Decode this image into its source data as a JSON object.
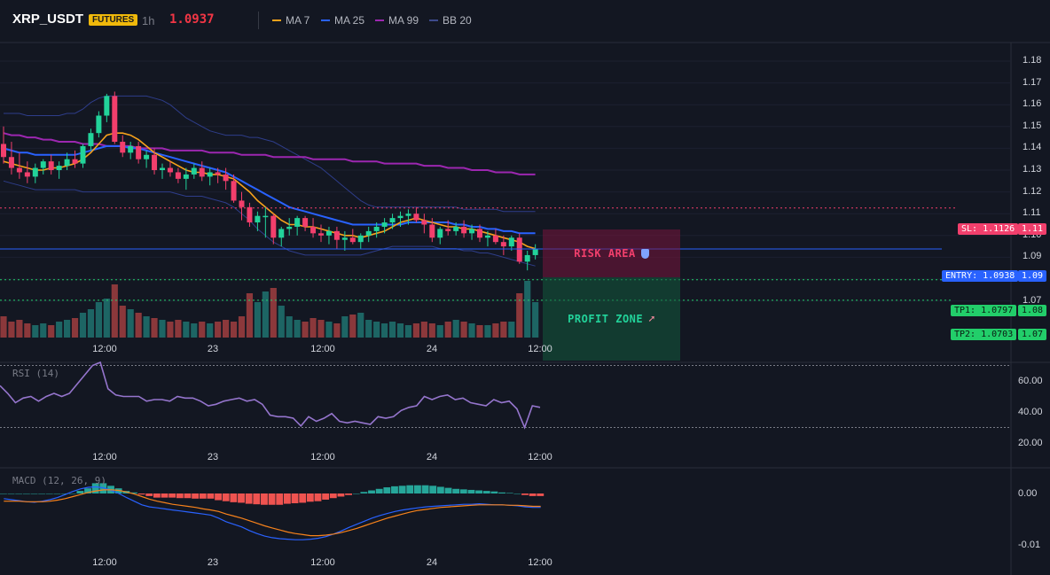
{
  "header": {
    "symbol": "XRP_USDT",
    "badge": "FUTURES",
    "timeframe": "1h",
    "price": "1.0937",
    "price_color": "#f23645",
    "indicators": [
      {
        "label": "MA 7",
        "color": "#f7a21b"
      },
      {
        "label": "MA 25",
        "color": "#2962ff"
      },
      {
        "label": "MA 99",
        "color": "#9c27b0"
      },
      {
        "label": "BB 20",
        "color": "#3d4a8c"
      }
    ]
  },
  "price_axis": {
    "ticks": [
      "1.18",
      "1.17",
      "1.16",
      "1.15",
      "1.14",
      "1.13",
      "1.12",
      "1.11",
      "1.10",
      "1.09",
      "1.08",
      "1.07"
    ]
  },
  "time_axis": {
    "ticks": [
      "12:00",
      "23",
      "12:00",
      "24",
      "12:00"
    ]
  },
  "trade": {
    "risk_label": "RISK AREA",
    "profit_label": "PROFIT ZONE",
    "sl_tag": "SL: 1.1126",
    "sl_value": 1.1126,
    "entry_tag": "ENTRY: 1.0938",
    "entry_value": 1.0938,
    "tp1_tag": "TP1: 1.0797",
    "tp1_value": 1.0797,
    "tp2_tag": "TP2: 1.0703",
    "tp2_value": 1.0703,
    "sl_axis": "1.11",
    "entry_axis": "1.09",
    "tp1_axis": "1.08",
    "tp2_axis": "1.07",
    "colors": {
      "up": "#22d39a",
      "down": "#f23f6c",
      "entry": "#2962ff",
      "tp": "#22ce6a"
    }
  },
  "rsi": {
    "title": "RSI (14)",
    "ticks": [
      "60.00",
      "40.00",
      "20.00"
    ],
    "levels": [
      70,
      30
    ],
    "values": [
      57,
      52,
      46,
      49,
      50,
      47,
      50,
      52,
      50,
      52,
      58,
      64,
      70,
      72,
      55,
      51,
      50,
      50,
      50,
      47,
      48,
      48,
      47,
      50,
      49,
      49,
      47,
      44,
      45,
      47,
      48,
      49,
      47,
      48,
      45,
      38,
      37,
      37,
      36,
      31,
      37,
      34,
      36,
      39,
      34,
      33,
      34,
      33,
      32,
      37,
      36,
      37,
      41,
      43,
      44,
      50,
      48,
      50,
      51,
      48,
      49,
      46,
      45,
      44,
      48,
      46,
      47,
      42,
      30,
      44,
      43
    ],
    "color": "#9575cd"
  },
  "macd": {
    "title": "MACD (12, 26, 9)",
    "ticks": [
      "0.00",
      "-0.01"
    ],
    "hist": [
      0.0,
      0.0,
      0.0,
      0.0,
      0.0,
      0.0,
      0.0,
      0.0,
      0.0,
      0.0,
      0.0005,
      0.001,
      0.002,
      0.002,
      0.0015,
      0.001,
      0.0005,
      0.0002,
      -0.0002,
      -0.0005,
      -0.0008,
      -0.0008,
      -0.0008,
      -0.0009,
      -0.0009,
      -0.001,
      -0.001,
      -0.001,
      -0.0013,
      -0.0015,
      -0.0017,
      -0.0018,
      -0.002,
      -0.0021,
      -0.0022,
      -0.0022,
      -0.0022,
      -0.002,
      -0.0019,
      -0.0018,
      -0.0016,
      -0.0015,
      -0.0012,
      -0.0009,
      -0.0006,
      -0.0003,
      0.0,
      0.0003,
      0.0006,
      0.0009,
      0.0012,
      0.0014,
      0.0015,
      0.0016,
      0.0016,
      0.0016,
      0.0015,
      0.0013,
      0.0011,
      0.0009,
      0.0008,
      0.0007,
      0.0006,
      0.0005,
      0.0004,
      0.0002,
      0.0001,
      0.0,
      -0.0003,
      -0.0005,
      -0.0005
    ],
    "macd_line": [
      -0.001,
      -0.0012,
      -0.0014,
      -0.0016,
      -0.0017,
      -0.0015,
      -0.0012,
      -0.0008,
      -0.0002,
      0.0004,
      0.0009,
      0.0012,
      0.0013,
      0.0011,
      0.0006,
      0.0,
      -0.0008,
      -0.0015,
      -0.0022,
      -0.0026,
      -0.0028,
      -0.003,
      -0.0032,
      -0.0034,
      -0.0036,
      -0.0038,
      -0.004,
      -0.0042,
      -0.0048,
      -0.0055,
      -0.006,
      -0.0065,
      -0.0072,
      -0.0078,
      -0.0083,
      -0.0086,
      -0.0088,
      -0.0089,
      -0.009,
      -0.009,
      -0.0089,
      -0.0087,
      -0.0084,
      -0.0079,
      -0.0073,
      -0.0066,
      -0.006,
      -0.0054,
      -0.0048,
      -0.0043,
      -0.0039,
      -0.0035,
      -0.0032,
      -0.003,
      -0.0028,
      -0.0026,
      -0.0025,
      -0.0024,
      -0.0023,
      -0.0022,
      -0.0021,
      -0.0021,
      -0.002,
      -0.0021,
      -0.0022,
      -0.0022,
      -0.0023,
      -0.0024,
      -0.0026,
      -0.0027,
      -0.0027
    ],
    "signal_line": [
      -0.0015,
      -0.0015,
      -0.0015,
      -0.0016,
      -0.0016,
      -0.0016,
      -0.0015,
      -0.0013,
      -0.001,
      -0.0006,
      -0.0002,
      0.0002,
      0.0005,
      0.0007,
      0.0007,
      0.0006,
      0.0003,
      -0.0001,
      -0.0006,
      -0.0011,
      -0.0015,
      -0.0018,
      -0.0021,
      -0.0023,
      -0.0025,
      -0.0027,
      -0.003,
      -0.0032,
      -0.0035,
      -0.004,
      -0.0044,
      -0.0048,
      -0.0053,
      -0.0058,
      -0.0063,
      -0.0067,
      -0.0071,
      -0.0075,
      -0.0078,
      -0.008,
      -0.0082,
      -0.0082,
      -0.0081,
      -0.0079,
      -0.0076,
      -0.0072,
      -0.0068,
      -0.0063,
      -0.0058,
      -0.0053,
      -0.0048,
      -0.0044,
      -0.004,
      -0.0036,
      -0.0033,
      -0.0031,
      -0.0029,
      -0.0027,
      -0.0026,
      -0.0025,
      -0.0024,
      -0.0023,
      -0.0022,
      -0.0022,
      -0.0022,
      -0.0022,
      -0.0023,
      -0.0023,
      -0.0024,
      -0.0025,
      -0.0025
    ],
    "macd_color": "#2962ff",
    "signal_color": "#f7821b",
    "hist_up": "#26a69a",
    "hist_down": "#ef5350"
  },
  "chart_data": {
    "type": "candlestick",
    "x_ticks": [
      "12:00",
      "23",
      "12:00",
      "24",
      "12:00"
    ],
    "y_range": [
      1.065,
      1.185
    ],
    "candles": [
      [
        1.142,
        1.15,
        1.133,
        1.136
      ],
      [
        1.136,
        1.143,
        1.128,
        1.131
      ],
      [
        1.131,
        1.138,
        1.126,
        1.129
      ],
      [
        1.129,
        1.134,
        1.124,
        1.127
      ],
      [
        1.127,
        1.133,
        1.124,
        1.131
      ],
      [
        1.131,
        1.135,
        1.128,
        1.134
      ],
      [
        1.134,
        1.137,
        1.128,
        1.13
      ],
      [
        1.13,
        1.134,
        1.126,
        1.132
      ],
      [
        1.132,
        1.138,
        1.13,
        1.135
      ],
      [
        1.135,
        1.139,
        1.131,
        1.133
      ],
      [
        1.133,
        1.142,
        1.131,
        1.141
      ],
      [
        1.141,
        1.149,
        1.139,
        1.147
      ],
      [
        1.147,
        1.157,
        1.145,
        1.155
      ],
      [
        1.155,
        1.165,
        1.152,
        1.164
      ],
      [
        1.164,
        1.166,
        1.142,
        1.143
      ],
      [
        1.143,
        1.146,
        1.136,
        1.138
      ],
      [
        1.138,
        1.143,
        1.135,
        1.141
      ],
      [
        1.141,
        1.143,
        1.133,
        1.135
      ],
      [
        1.135,
        1.139,
        1.131,
        1.137
      ],
      [
        1.137,
        1.14,
        1.128,
        1.13
      ],
      [
        1.13,
        1.133,
        1.126,
        1.131
      ],
      [
        1.131,
        1.134,
        1.127,
        1.129
      ],
      [
        1.129,
        1.131,
        1.124,
        1.126
      ],
      [
        1.126,
        1.131,
        1.121,
        1.128
      ],
      [
        1.128,
        1.133,
        1.126,
        1.131
      ],
      [
        1.131,
        1.134,
        1.125,
        1.127
      ],
      [
        1.127,
        1.131,
        1.123,
        1.129
      ],
      [
        1.129,
        1.131,
        1.124,
        1.128
      ],
      [
        1.128,
        1.131,
        1.121,
        1.125
      ],
      [
        1.125,
        1.128,
        1.115,
        1.116
      ],
      [
        1.116,
        1.12,
        1.107,
        1.113
      ],
      [
        1.113,
        1.115,
        1.104,
        1.106
      ],
      [
        1.106,
        1.111,
        1.102,
        1.109
      ],
      [
        1.109,
        1.113,
        1.099,
        1.109
      ],
      [
        1.109,
        1.11,
        1.096,
        1.099
      ],
      [
        1.099,
        1.104,
        1.095,
        1.103
      ],
      [
        1.103,
        1.108,
        1.1,
        1.104
      ],
      [
        1.104,
        1.109,
        1.1,
        1.108
      ],
      [
        1.108,
        1.109,
        1.102,
        1.104
      ],
      [
        1.104,
        1.108,
        1.099,
        1.101
      ],
      [
        1.101,
        1.105,
        1.097,
        1.1
      ],
      [
        1.1,
        1.104,
        1.096,
        1.102
      ],
      [
        1.102,
        1.104,
        1.094,
        1.098
      ],
      [
        1.098,
        1.102,
        1.093,
        1.099
      ],
      [
        1.099,
        1.103,
        1.096,
        1.097
      ],
      [
        1.097,
        1.101,
        1.094,
        1.1
      ],
      [
        1.1,
        1.104,
        1.097,
        1.102
      ],
      [
        1.102,
        1.106,
        1.099,
        1.104
      ],
      [
        1.104,
        1.108,
        1.101,
        1.106
      ],
      [
        1.106,
        1.11,
        1.103,
        1.108
      ],
      [
        1.108,
        1.111,
        1.104,
        1.109
      ],
      [
        1.109,
        1.112,
        1.105,
        1.11
      ],
      [
        1.11,
        1.113,
        1.106,
        1.107
      ],
      [
        1.107,
        1.11,
        1.101,
        1.105
      ],
      [
        1.105,
        1.108,
        1.097,
        1.099
      ],
      [
        1.099,
        1.104,
        1.096,
        1.103
      ],
      [
        1.103,
        1.107,
        1.1,
        1.102
      ],
      [
        1.102,
        1.106,
        1.1,
        1.104
      ],
      [
        1.104,
        1.107,
        1.099,
        1.101
      ],
      [
        1.101,
        1.105,
        1.098,
        1.103
      ],
      [
        1.103,
        1.105,
        1.097,
        1.099
      ],
      [
        1.099,
        1.102,
        1.095,
        1.1
      ],
      [
        1.1,
        1.103,
        1.096,
        1.097
      ],
      [
        1.097,
        1.1,
        1.091,
        1.095
      ],
      [
        1.095,
        1.1,
        1.093,
        1.099
      ],
      [
        1.099,
        1.101,
        1.087,
        1.088
      ],
      [
        1.088,
        1.093,
        1.084,
        1.091
      ],
      [
        1.091,
        1.096,
        1.089,
        1.094
      ]
    ],
    "volume": [
      12,
      9,
      10,
      8,
      7,
      8,
      7,
      9,
      10,
      11,
      14,
      16,
      20,
      22,
      30,
      18,
      16,
      14,
      12,
      11,
      10,
      9,
      10,
      9,
      8,
      9,
      8,
      9,
      10,
      9,
      12,
      25,
      20,
      26,
      28,
      18,
      12,
      10,
      9,
      11,
      10,
      9,
      8,
      12,
      13,
      14,
      10,
      9,
      8,
      9,
      8,
      7,
      8,
      9,
      8,
      7,
      9,
      10,
      9,
      8,
      7,
      7,
      8,
      9,
      9,
      25,
      32,
      20
    ],
    "ma7": [
      1.134,
      1.133,
      1.132,
      1.131,
      1.13,
      1.13,
      1.131,
      1.131,
      1.132,
      1.133,
      1.135,
      1.138,
      1.142,
      1.146,
      1.147,
      1.147,
      1.146,
      1.144,
      1.141,
      1.138,
      1.136,
      1.134,
      1.132,
      1.13,
      1.129,
      1.129,
      1.128,
      1.128,
      1.127,
      1.126,
      1.123,
      1.12,
      1.116,
      1.113,
      1.11,
      1.107,
      1.105,
      1.105,
      1.104,
      1.104,
      1.103,
      1.102,
      1.101,
      1.1,
      1.1,
      1.099,
      1.1,
      1.101,
      1.102,
      1.104,
      1.106,
      1.107,
      1.108,
      1.107,
      1.106,
      1.105,
      1.104,
      1.104,
      1.103,
      1.103,
      1.102,
      1.101,
      1.1,
      1.099,
      1.098,
      1.097,
      1.095,
      1.094
    ],
    "ma25": [
      1.14,
      1.139,
      1.138,
      1.138,
      1.137,
      1.137,
      1.137,
      1.137,
      1.137,
      1.137,
      1.138,
      1.139,
      1.14,
      1.141,
      1.141,
      1.141,
      1.14,
      1.14,
      1.139,
      1.138,
      1.137,
      1.136,
      1.135,
      1.134,
      1.133,
      1.132,
      1.131,
      1.13,
      1.129,
      1.127,
      1.125,
      1.123,
      1.121,
      1.119,
      1.117,
      1.115,
      1.113,
      1.112,
      1.111,
      1.11,
      1.109,
      1.108,
      1.107,
      1.106,
      1.105,
      1.105,
      1.105,
      1.105,
      1.105,
      1.105,
      1.105,
      1.106,
      1.106,
      1.106,
      1.106,
      1.106,
      1.106,
      1.105,
      1.105,
      1.104,
      1.104,
      1.103,
      1.103,
      1.102,
      1.102,
      1.101,
      1.101,
      1.101
    ],
    "ma99": [
      1.147,
      1.146,
      1.146,
      1.145,
      1.145,
      1.144,
      1.144,
      1.143,
      1.143,
      1.143,
      1.142,
      1.142,
      1.142,
      1.141,
      1.141,
      1.141,
      1.141,
      1.14,
      1.14,
      1.14,
      1.14,
      1.139,
      1.139,
      1.139,
      1.139,
      1.139,
      1.138,
      1.138,
      1.138,
      1.138,
      1.137,
      1.137,
      1.137,
      1.137,
      1.136,
      1.136,
      1.136,
      1.136,
      1.136,
      1.135,
      1.135,
      1.135,
      1.135,
      1.135,
      1.134,
      1.134,
      1.134,
      1.134,
      1.133,
      1.133,
      1.133,
      1.133,
      1.133,
      1.132,
      1.132,
      1.132,
      1.131,
      1.131,
      1.131,
      1.13,
      1.13,
      1.13,
      1.129,
      1.129,
      1.129,
      1.128,
      1.128,
      1.128
    ],
    "bb_upper": [
      1.156,
      1.156,
      1.156,
      1.155,
      1.155,
      1.155,
      1.155,
      1.155,
      1.156,
      1.156,
      1.158,
      1.161,
      1.163,
      1.164,
      1.164,
      1.164,
      1.164,
      1.164,
      1.164,
      1.163,
      1.162,
      1.16,
      1.157,
      1.154,
      1.152,
      1.15,
      1.148,
      1.147,
      1.146,
      1.146,
      1.146,
      1.145,
      1.145,
      1.144,
      1.143,
      1.141,
      1.139,
      1.137,
      1.135,
      1.133,
      1.131,
      1.128,
      1.125,
      1.122,
      1.119,
      1.116,
      1.114,
      1.113,
      1.113,
      1.113,
      1.113,
      1.113,
      1.113,
      1.113,
      1.113,
      1.113,
      1.113,
      1.113,
      1.112,
      1.112,
      1.112,
      1.112,
      1.112,
      1.111,
      1.111,
      1.111,
      1.111,
      1.111
    ],
    "bb_lower": [
      1.125,
      1.124,
      1.123,
      1.122,
      1.121,
      1.121,
      1.121,
      1.121,
      1.121,
      1.121,
      1.12,
      1.12,
      1.12,
      1.12,
      1.12,
      1.12,
      1.12,
      1.12,
      1.12,
      1.12,
      1.12,
      1.12,
      1.119,
      1.118,
      1.118,
      1.118,
      1.117,
      1.116,
      1.115,
      1.113,
      1.11,
      1.107,
      1.103,
      1.1,
      1.097,
      1.095,
      1.093,
      1.092,
      1.091,
      1.091,
      1.091,
      1.091,
      1.091,
      1.091,
      1.091,
      1.091,
      1.092,
      1.093,
      1.094,
      1.095,
      1.095,
      1.095,
      1.095,
      1.095,
      1.095,
      1.094,
      1.094,
      1.094,
      1.093,
      1.093,
      1.092,
      1.092,
      1.091,
      1.09,
      1.089,
      1.088,
      1.087,
      1.086
    ]
  }
}
